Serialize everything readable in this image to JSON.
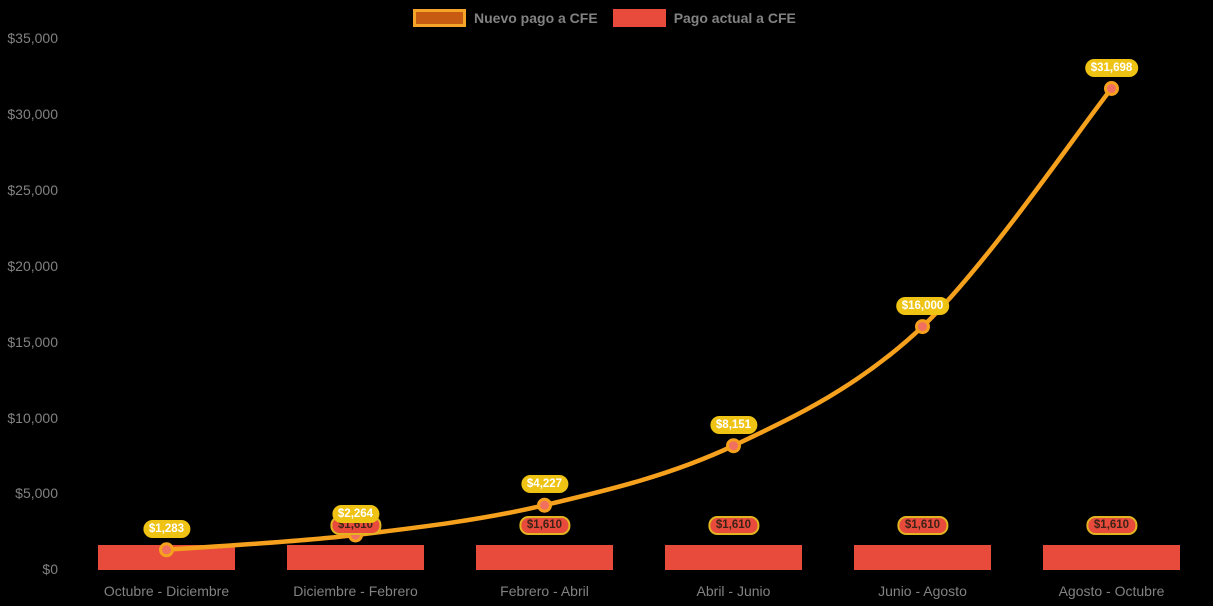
{
  "colors": {
    "background": "#000000",
    "line": "#f5a11d",
    "marker": "#f2705f",
    "bar": "#e84b3c",
    "pill_yellow_bg": "#efc314",
    "pill_yellow_text": "#ffffff",
    "pill_red_bg": "#e84b3c",
    "pill_red_border": "#e2b520",
    "pill_red_text": "#3d2317",
    "axis_text": "#828282",
    "legend_text": "#828282",
    "swatch_outer": "#f5a428",
    "swatch_inner": "#c75b11"
  },
  "chart_data": {
    "type": "line",
    "title": "",
    "xlabel": "",
    "ylabel": "",
    "ylim": [
      0,
      35000
    ],
    "grid": false,
    "legend_position": "top",
    "categories": [
      "Octubre - Diciembre",
      "Diciembre - Febrero",
      "Febrero - Abril",
      "Abril - Junio",
      "Junio - Agosto",
      "Agosto - Octubre"
    ],
    "y_ticks": [
      {
        "value": 0,
        "label": "$0"
      },
      {
        "value": 5000,
        "label": "$5,000"
      },
      {
        "value": 10000,
        "label": "$10,000"
      },
      {
        "value": 15000,
        "label": "$15,000"
      },
      {
        "value": 20000,
        "label": "$20,000"
      },
      {
        "value": 25000,
        "label": "$25,000"
      },
      {
        "value": 30000,
        "label": "$30,000"
      },
      {
        "value": 35000,
        "label": "$35,000"
      }
    ],
    "series": [
      {
        "name": "Nuevo pago a CFE",
        "type": "line",
        "color": "#f5a11d",
        "values": [
          1283,
          2264,
          4227,
          8151,
          16000,
          31698
        ],
        "labels": [
          "$1,283",
          "$2,264",
          "$4,227",
          "$8,151",
          "$16,000",
          "$31,698"
        ]
      },
      {
        "name": "Pago actual a CFE",
        "type": "bar",
        "color": "#e84b3c",
        "values": [
          1610,
          1610,
          1610,
          1610,
          1610,
          1610
        ],
        "labels": [
          null,
          "$1,610",
          "$1,610",
          "$1,610",
          "$1,610",
          "$1,610"
        ]
      }
    ]
  }
}
